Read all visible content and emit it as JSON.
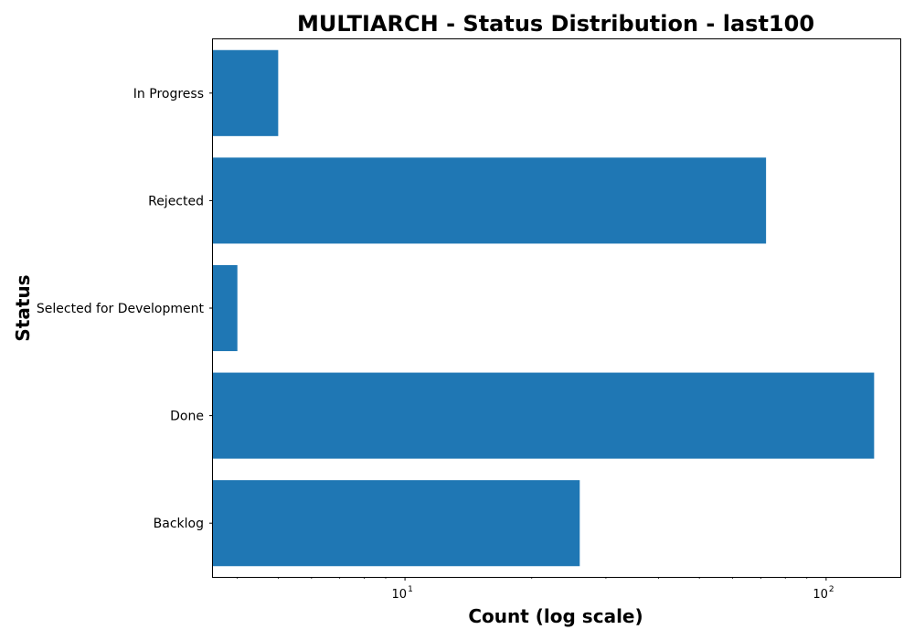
{
  "chart_data": {
    "type": "bar",
    "orientation": "horizontal",
    "title": "MULTIARCH - Status Distribution - last100",
    "xlabel": "Count (log scale)",
    "ylabel": "Status",
    "x_scale": "log",
    "xlim": [
      3.5,
      150
    ],
    "categories": [
      "Backlog",
      "Done",
      "Selected for Development",
      "Rejected",
      "In Progress"
    ],
    "values": [
      26,
      130,
      4,
      72,
      5
    ],
    "x_ticks": [
      {
        "value": 10,
        "base": "10",
        "exp": "1"
      },
      {
        "value": 100,
        "base": "10",
        "exp": "2"
      }
    ],
    "bar_color": "#1f77b4",
    "grid": false,
    "legend": "none"
  }
}
